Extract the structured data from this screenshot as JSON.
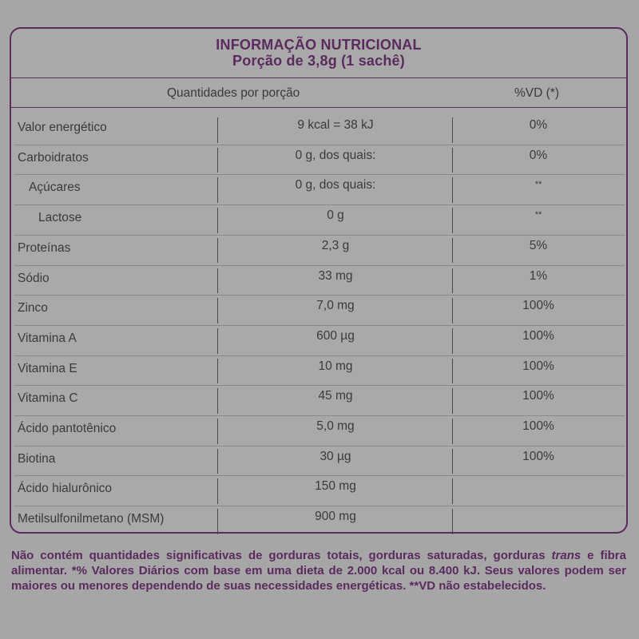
{
  "title": "INFORMAÇÃO NUTRICIONAL",
  "portion": "Porção de 3,8g (1 sachê)",
  "header": {
    "quantity": "Quantidades por porção",
    "vd": "%VD (*)"
  },
  "rows": [
    {
      "name": "Valor energético",
      "amount": "9 kcal = 38 kJ",
      "vd": "0%",
      "indent": 0
    },
    {
      "name": "Carboidratos",
      "amount": "0 g, dos quais:",
      "vd": "0%",
      "indent": 0
    },
    {
      "name": "Açúcares",
      "amount": "0 g, dos quais:",
      "vd": "**",
      "indent": 1
    },
    {
      "name": "Lactose",
      "amount": "0 g",
      "vd": "**",
      "indent": 2
    },
    {
      "name": "Proteínas",
      "amount": "2,3 g",
      "vd": "5%",
      "indent": 0
    },
    {
      "name": "Sódio",
      "amount": "33 mg",
      "vd": "1%",
      "indent": 0
    },
    {
      "name": "Zinco",
      "amount": "7,0 mg",
      "vd": "100%",
      "indent": 0
    },
    {
      "name": "Vitamina A",
      "amount": "600 µg",
      "vd": "100%",
      "indent": 0
    },
    {
      "name": "Vitamina E",
      "amount": "10 mg",
      "vd": "100%",
      "indent": 0
    },
    {
      "name": "Vitamina C",
      "amount": "45 mg",
      "vd": "100%",
      "indent": 0
    },
    {
      "name": "Ácido pantotênico",
      "amount": "5,0 mg",
      "vd": "100%",
      "indent": 0
    },
    {
      "name": "Biotina",
      "amount": "30 µg",
      "vd": "100%",
      "indent": 0
    },
    {
      "name": "Ácido hialurônico",
      "amount": "150 mg",
      "vd": "",
      "indent": 0
    },
    {
      "name": "Metilsulfonilmetano (MSM)",
      "amount": "900 mg",
      "vd": "",
      "indent": 0
    }
  ],
  "footer": {
    "part1": "Não contém quantidades significativas de gorduras totais, gorduras saturadas, gorduras ",
    "trans": "trans",
    "part2": " e fibra alimentar. *% Valores Diários com base em uma dieta de 2.000 kcal ou 8.400 kJ. Seus valores podem ser maiores ou menores dependendo de suas necessidades energéticas. **VD não estabelecidos."
  }
}
